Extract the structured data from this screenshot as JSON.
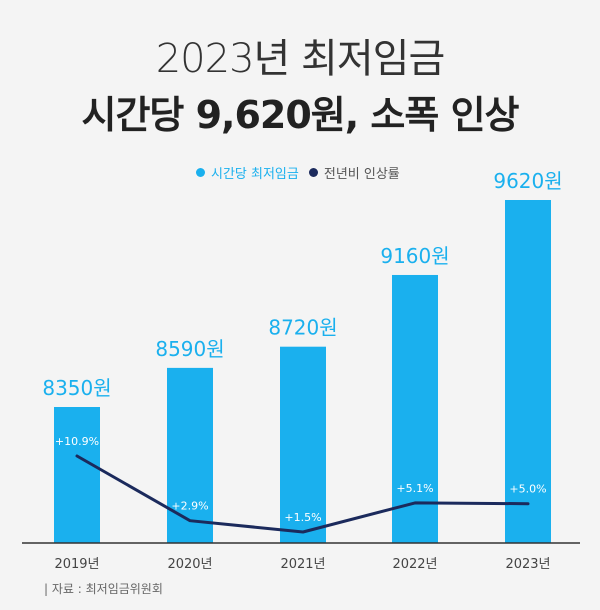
{
  "title": "2023년 최저임금",
  "subtitle": "시간당 9,620원, 소폭 인상",
  "legend": {
    "bar_label": "시간당 최저임금",
    "line_label": "전년비 인상률"
  },
  "source": "| 자료 : 최저임금위원회",
  "colors": {
    "bar": "#1ab0ee",
    "line": "#1b2a5c",
    "axis": "#333333"
  },
  "chart_data": {
    "type": "bar",
    "categories": [
      "2019년",
      "2020년",
      "2021년",
      "2022년",
      "2023년"
    ],
    "series": [
      {
        "name": "시간당 최저임금",
        "type": "bar",
        "values": [
          8350,
          8590,
          8720,
          9160,
          9620
        ],
        "labels": [
          "8350원",
          "8590원",
          "8720원",
          "9160원",
          "9620원"
        ]
      },
      {
        "name": "전년비 인상률",
        "type": "line",
        "values": [
          10.9,
          2.9,
          1.5,
          5.1,
          5.0
        ],
        "labels": [
          "+10.9%",
          "+2.9%",
          "+1.5%",
          "+5.1%",
          "+5.0%"
        ]
      }
    ],
    "title": "2023년 최저임금",
    "subtitle": "시간당 9,620원, 소폭 인상",
    "legend_position": "top-center",
    "grid": false
  }
}
